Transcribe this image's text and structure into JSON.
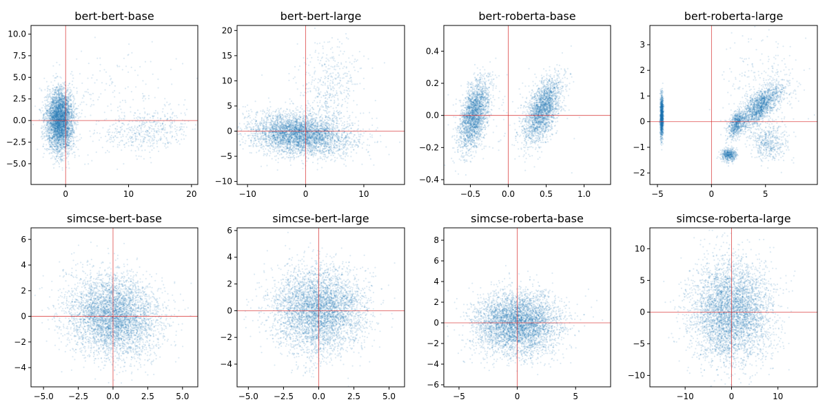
{
  "chart_data": [
    {
      "type": "scatter",
      "title": "bert-bert-base",
      "xlim": [
        -5.5,
        21
      ],
      "ylim": [
        -7.4,
        11.0
      ],
      "xticks": [
        0,
        10,
        20
      ],
      "yticks": [
        -5.0,
        -2.5,
        0.0,
        2.5,
        5.0,
        7.5,
        10.0
      ],
      "xtick_labels": [
        "0",
        "10",
        "20"
      ],
      "ytick_labels": [
        "−5.0",
        "−2.5",
        "0.0",
        "2.5",
        "5.0",
        "7.5",
        "10.0"
      ],
      "ref_lines": {
        "x": 0,
        "y": 0
      },
      "clusters": [
        {
          "x": -0.9,
          "y": 0.0,
          "sx": 1.1,
          "sy": 1.8,
          "weight": 0.86,
          "rho": 0.0
        },
        {
          "x": 13.0,
          "y": -1.2,
          "sx": 3.5,
          "sy": 1.2,
          "weight": 0.1,
          "rho": 0.3
        },
        {
          "x": 8.0,
          "y": 2.0,
          "sx": 5.0,
          "sy": 3.0,
          "weight": 0.04,
          "rho": 0.0
        }
      ]
    },
    {
      "type": "scatter",
      "title": "bert-bert-large",
      "xlim": [
        -11.8,
        17
      ],
      "ylim": [
        -10.6,
        21.0
      ],
      "xticks": [
        -10,
        0,
        10
      ],
      "yticks": [
        -10,
        -5,
        0,
        5,
        10,
        15,
        20
      ],
      "xtick_labels": [
        "−10",
        "0",
        "10"
      ],
      "ytick_labels": [
        "−10",
        "−5",
        "0",
        "5",
        "10",
        "15",
        "20"
      ],
      "ref_lines": {
        "x": 0,
        "y": 0
      },
      "clusters": [
        {
          "x": -1.0,
          "y": -0.7,
          "sx": 4.2,
          "sy": 2.0,
          "weight": 0.88,
          "rho": -0.2
        },
        {
          "x": 4.0,
          "y": 8.0,
          "sx": 2.5,
          "sy": 5.0,
          "weight": 0.1,
          "rho": 0.0
        },
        {
          "x": 3.0,
          "y": 3.0,
          "sx": 6.0,
          "sy": 5.0,
          "weight": 0.02,
          "rho": 0.0
        }
      ]
    },
    {
      "type": "scatter",
      "title": "bert-roberta-base",
      "xlim": [
        -0.85,
        1.35
      ],
      "ylim": [
        -0.43,
        0.56
      ],
      "xticks": [
        -0.5,
        0.0,
        0.5,
        1.0
      ],
      "yticks": [
        -0.4,
        -0.2,
        0.0,
        0.2,
        0.4
      ],
      "xtick_labels": [
        "−0.5",
        "0.0",
        "0.5",
        "1.0"
      ],
      "ytick_labels": [
        "−0.4",
        "−0.2",
        "0.0",
        "0.2",
        "0.4"
      ],
      "ref_lines": {
        "x": 0,
        "y": 0
      },
      "clusters": [
        {
          "x": -0.45,
          "y": 0.0,
          "sx": 0.1,
          "sy": 0.11,
          "weight": 0.5,
          "rho": 0.5
        },
        {
          "x": 0.45,
          "y": 0.03,
          "sx": 0.12,
          "sy": 0.1,
          "weight": 0.48,
          "rho": 0.55
        },
        {
          "x": 0.0,
          "y": 0.0,
          "sx": 0.5,
          "sy": 0.15,
          "weight": 0.02,
          "rho": 0.0
        }
      ]
    },
    {
      "type": "scatter",
      "title": "bert-roberta-large",
      "xlim": [
        -5.7,
        9.8
      ],
      "ylim": [
        -2.45,
        3.75
      ],
      "xticks": [
        -5,
        0,
        5
      ],
      "yticks": [
        -2,
        -1,
        0,
        1,
        2,
        3
      ],
      "xtick_labels": [
        "−5",
        "0",
        "5"
      ],
      "ytick_labels": [
        "−2",
        "−1",
        "0",
        "1",
        "2",
        "3"
      ],
      "ref_lines": {
        "x": 0,
        "y": 0
      },
      "clusters": [
        {
          "x": -4.6,
          "y": 0.2,
          "sx": 0.07,
          "sy": 0.4,
          "weight": 0.25,
          "rho": 0.0
        },
        {
          "x": 4.5,
          "y": 0.6,
          "sx": 1.1,
          "sy": 0.45,
          "weight": 0.38,
          "rho": 0.75
        },
        {
          "x": 2.3,
          "y": -0.1,
          "sx": 0.35,
          "sy": 0.25,
          "weight": 0.12,
          "rho": 0.4
        },
        {
          "x": 1.6,
          "y": -1.3,
          "sx": 0.35,
          "sy": 0.12,
          "weight": 0.1,
          "rho": 0.0
        },
        {
          "x": 5.3,
          "y": -0.8,
          "sx": 0.8,
          "sy": 0.35,
          "weight": 0.1,
          "rho": 0.0
        },
        {
          "x": 5.0,
          "y": 1.5,
          "sx": 2.0,
          "sy": 1.0,
          "weight": 0.05,
          "rho": 0.0
        }
      ]
    },
    {
      "type": "scatter",
      "title": "simcse-bert-base",
      "xlim": [
        -5.9,
        6.1
      ],
      "ylim": [
        -5.5,
        6.9
      ],
      "xticks": [
        -5.0,
        -2.5,
        0.0,
        2.5,
        5.0
      ],
      "yticks": [
        -4,
        -2,
        0,
        2,
        4,
        6
      ],
      "xtick_labels": [
        "−5.0",
        "−2.5",
        "0.0",
        "2.5",
        "5.0"
      ],
      "ytick_labels": [
        "−4",
        "−2",
        "0",
        "2",
        "4",
        "6"
      ],
      "ref_lines": {
        "x": 0,
        "y": 0
      },
      "clusters": [
        {
          "x": 0.0,
          "y": 0.0,
          "sx": 1.6,
          "sy": 1.6,
          "weight": 1.0,
          "rho": -0.1
        }
      ]
    },
    {
      "type": "scatter",
      "title": "simcse-bert-large",
      "xlim": [
        -5.8,
        6.1
      ],
      "ylim": [
        -5.7,
        6.2
      ],
      "xticks": [
        -5.0,
        -2.5,
        0.0,
        2.5,
        5.0
      ],
      "yticks": [
        -4,
        -2,
        0,
        2,
        4,
        6
      ],
      "xtick_labels": [
        "−5.0",
        "−2.5",
        "0.0",
        "2.5",
        "5.0"
      ],
      "ytick_labels": [
        "−4",
        "−2",
        "0",
        "2",
        "4",
        "6"
      ],
      "ref_lines": {
        "x": 0,
        "y": 0
      },
      "clusters": [
        {
          "x": 0.0,
          "y": 0.0,
          "sx": 1.6,
          "sy": 1.6,
          "weight": 1.0,
          "rho": 0.0
        }
      ]
    },
    {
      "type": "scatter",
      "title": "simcse-roberta-base",
      "xlim": [
        -6.3,
        8.0
      ],
      "ylim": [
        -6.2,
        9.2
      ],
      "xticks": [
        -5,
        0,
        5
      ],
      "yticks": [
        -6,
        -4,
        -2,
        0,
        2,
        4,
        6,
        8
      ],
      "xtick_labels": [
        "−5",
        "0",
        "5"
      ],
      "ytick_labels": [
        "−6",
        "−4",
        "−2",
        "0",
        "2",
        "4",
        "6",
        "8"
      ],
      "ref_lines": {
        "x": 0,
        "y": 0
      },
      "clusters": [
        {
          "x": 0.0,
          "y": 0.0,
          "sx": 1.8,
          "sy": 1.5,
          "weight": 1.0,
          "rho": 0.0
        }
      ]
    },
    {
      "type": "scatter",
      "title": "simcse-roberta-large",
      "xlim": [
        -17.6,
        18.5
      ],
      "ylim": [
        -11.8,
        13.3
      ],
      "xticks": [
        -10,
        0,
        10
      ],
      "yticks": [
        -10,
        -5,
        0,
        5,
        10
      ],
      "xtick_labels": [
        "−10",
        "0",
        "10"
      ],
      "ytick_labels": [
        "−10",
        "−5",
        "0",
        "5",
        "10"
      ],
      "ref_lines": {
        "x": 0,
        "y": 0
      },
      "clusters": [
        {
          "x": 0.0,
          "y": 0.0,
          "sx": 4.3,
          "sy": 4.0,
          "weight": 1.0,
          "rho": 0.0
        }
      ]
    }
  ],
  "style": {
    "point_color": "#1f77b4",
    "ref_line_color": "#d62728",
    "points_per_panel": 4500
  }
}
